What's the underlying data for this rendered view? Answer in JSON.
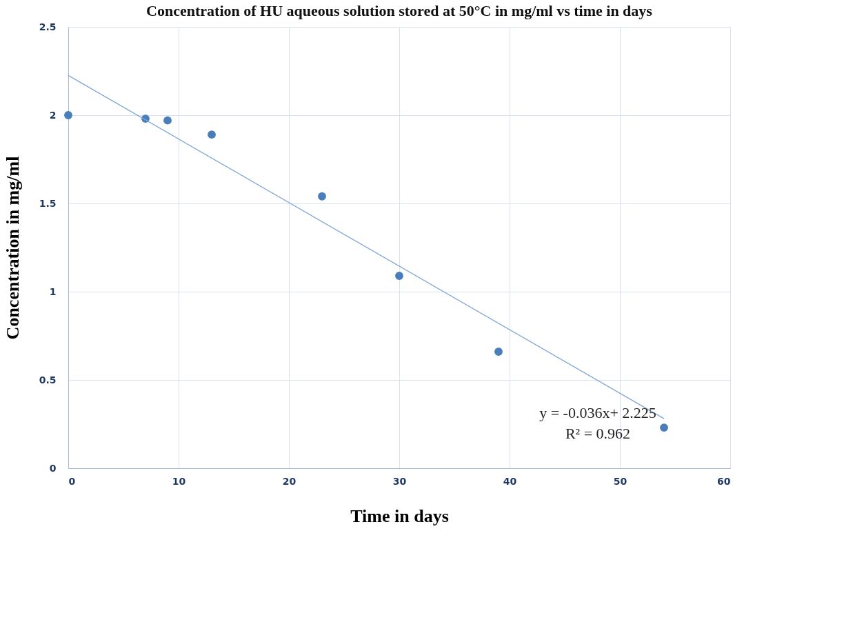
{
  "chart_data": {
    "type": "scatter",
    "title": "Concentration of HU aqueous solution stored at  50°C in mg/ml vs time in days",
    "xlabel": "Time in days",
    "ylabel": "Concentration in mg/ml",
    "xlim": [
      0,
      60
    ],
    "xticks": [
      0,
      10,
      20,
      30,
      40,
      50,
      60
    ],
    "ylim": [
      0,
      2.5
    ],
    "yticks": [
      0,
      0.5,
      1,
      1.5,
      2,
      2.5
    ],
    "grid": true,
    "series": [
      {
        "marker": "circle",
        "color": "#4a7ebb",
        "x": [
          0,
          7,
          9,
          13,
          23,
          30,
          39,
          54
        ],
        "values": [
          2.0,
          1.98,
          1.97,
          1.89,
          1.54,
          1.09,
          0.66,
          0.23
        ]
      },
      {
        "type": "line",
        "marker": "none",
        "color": "#7fa6d6",
        "x": [
          0,
          54
        ],
        "values": [
          2.225,
          0.281
        ]
      }
    ],
    "annotations": [
      "y = -0.036x+ 2.225",
      "R² = 0.962"
    ]
  }
}
